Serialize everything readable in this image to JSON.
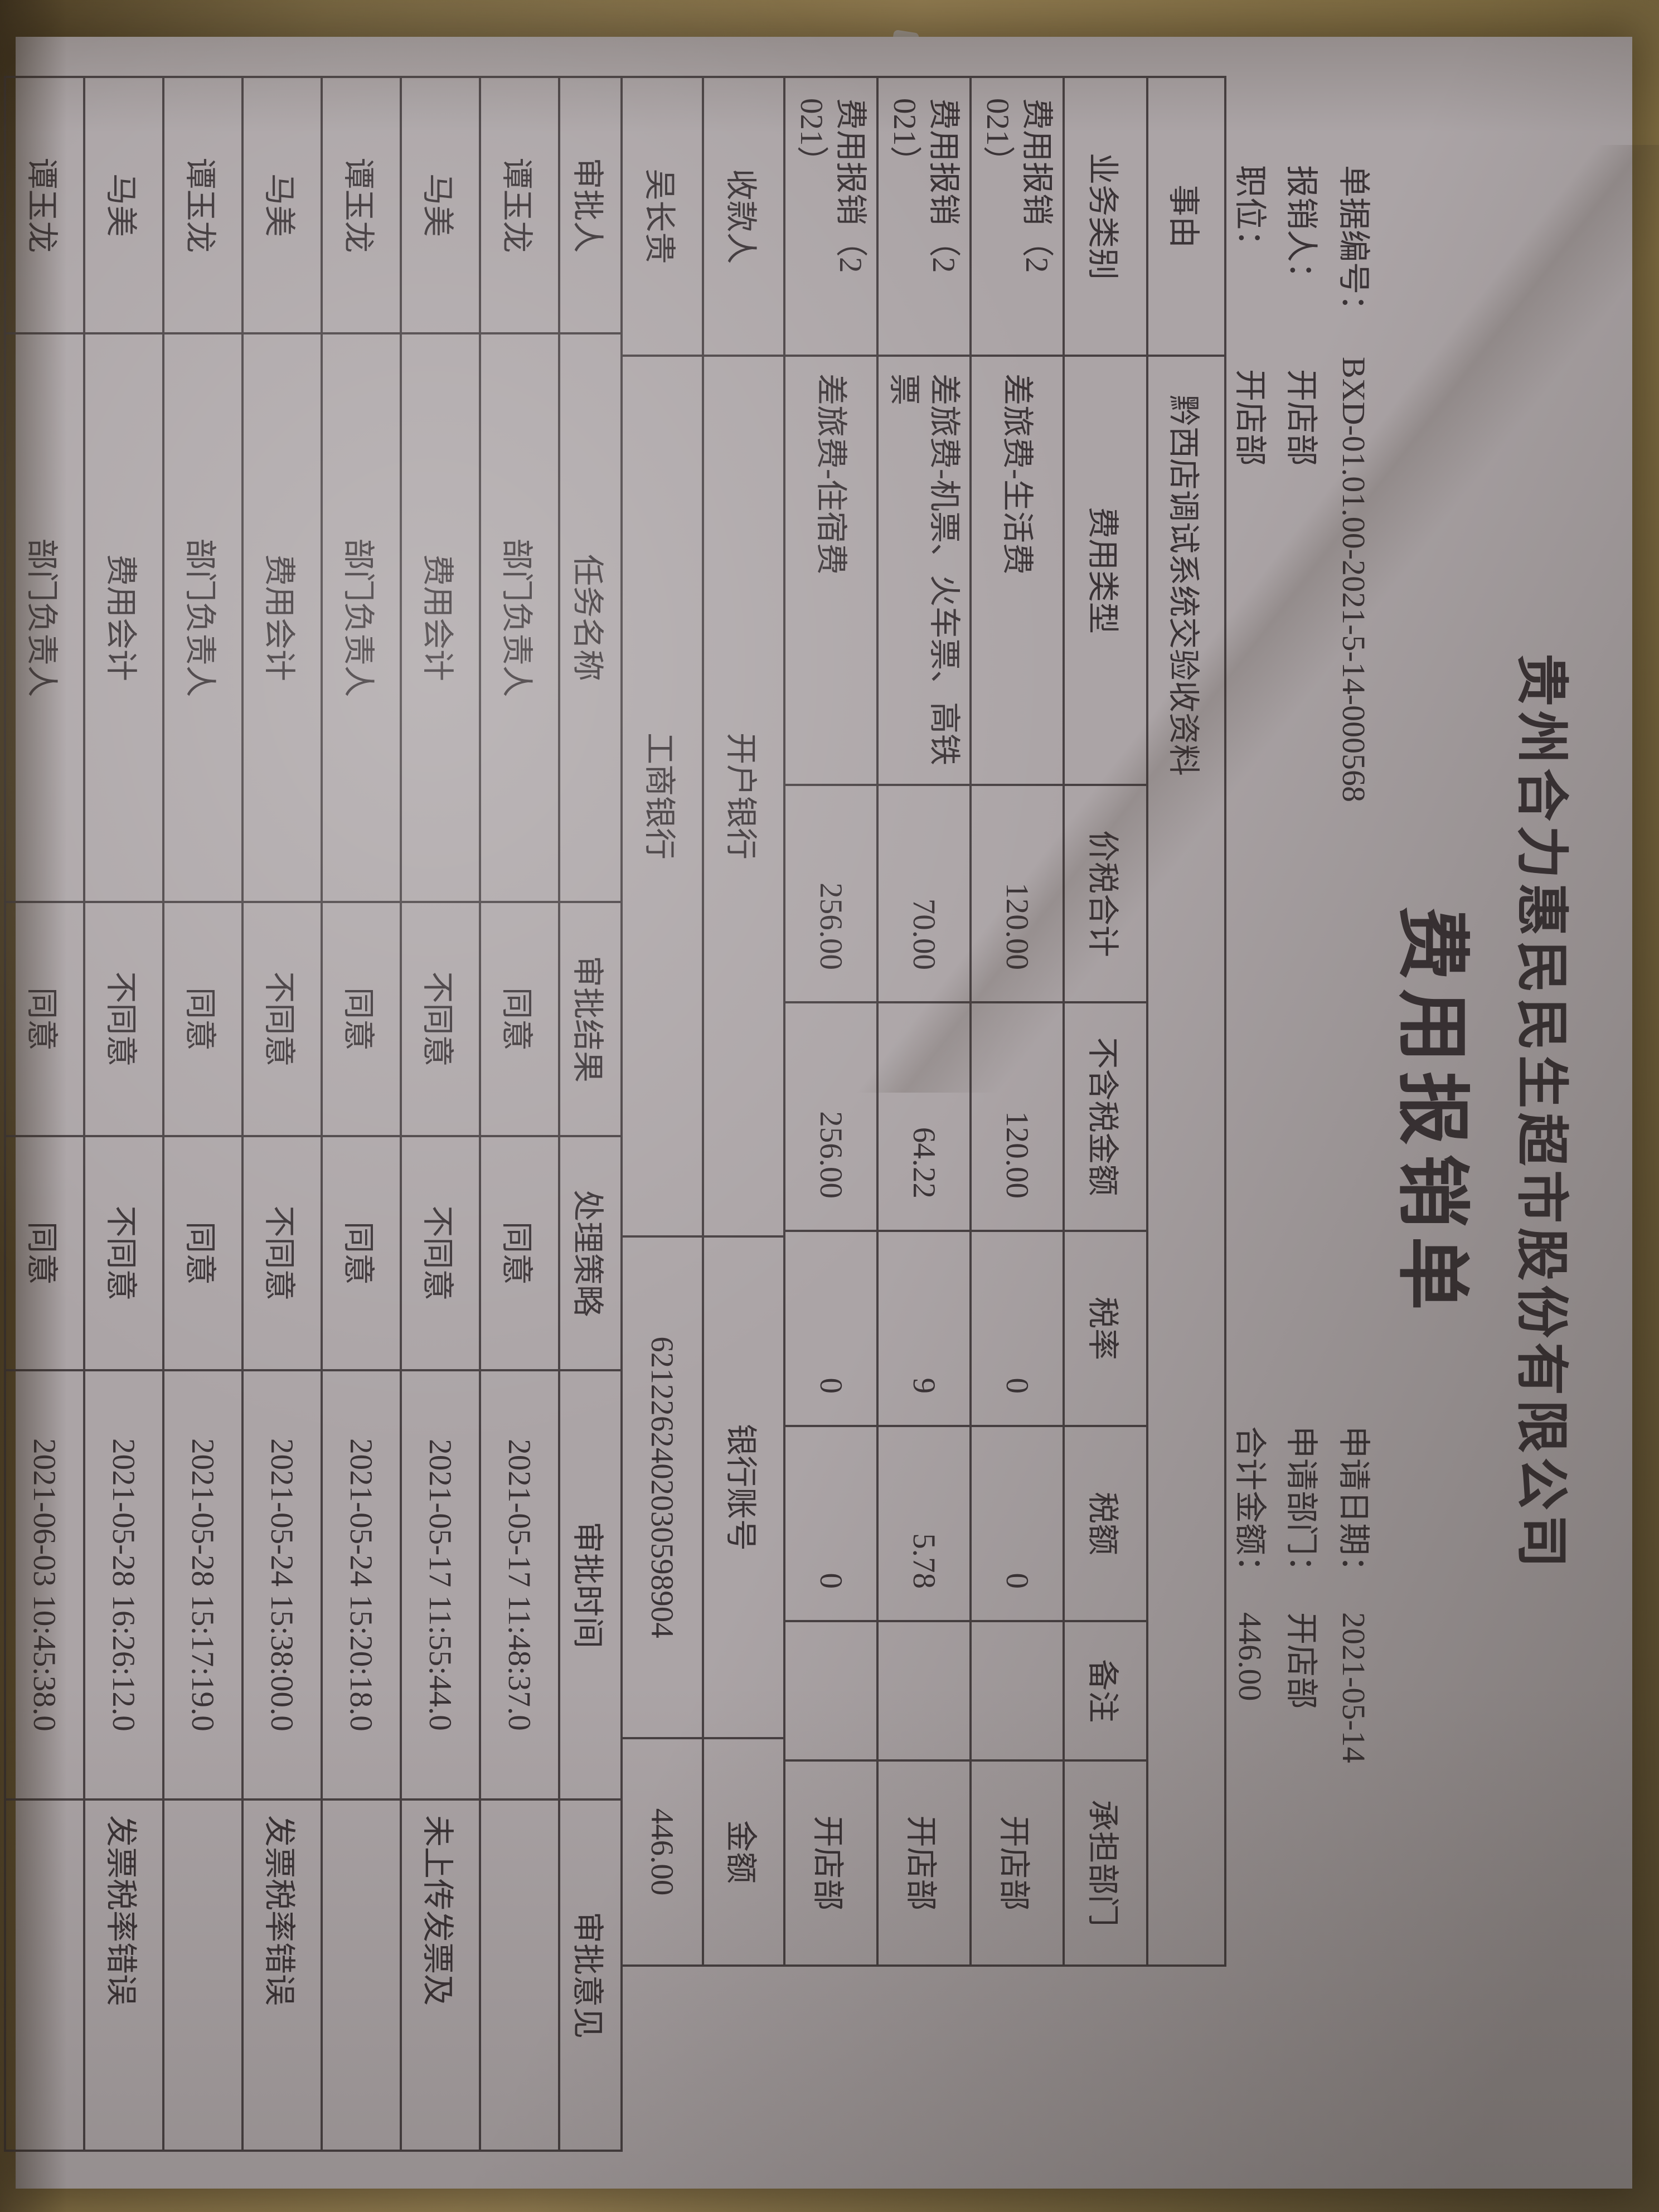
{
  "surface": {
    "desk_color": "#9a8453",
    "paper_color": "#aba4a6",
    "ink_color": "#3a3336"
  },
  "document": {
    "company_title": "贵州合力惠民民生超市股份有限公司",
    "form_title": "费用报销单",
    "header_fields": {
      "left": [
        {
          "label": "单据编号：",
          "value": "BXD-01.01.00-2021-5-14-000568"
        },
        {
          "label": "报销人：",
          "value": "开店部"
        },
        {
          "label": "职位：",
          "value": "开店部"
        }
      ],
      "right": [
        {
          "label": "申请日期：",
          "value": "2021-05-14"
        },
        {
          "label": "申请部门：",
          "value": "开店部"
        },
        {
          "label": "合计金额：",
          "value": "446.00"
        }
      ]
    },
    "expense_table": {
      "subject_label": "事由",
      "subject_value": "黔西店调试系统交验收资料",
      "columns": [
        "业务类别",
        "费用类型",
        "价税合计",
        "不含税金额",
        "税率",
        "税额",
        "备注",
        "承担部门"
      ],
      "rows": [
        [
          "费用报销（2021）",
          "差旅费-生活费",
          "120.00",
          "120.00",
          "0",
          "0",
          "",
          "开店部"
        ],
        [
          "费用报销（2021）",
          "差旅费-机票、火车票、高铁票",
          "70.00",
          "64.22",
          "9",
          "5.78",
          "",
          "开店部"
        ],
        [
          "费用报销（2021）",
          "差旅费-住宿费",
          "256.00",
          "256.00",
          "0",
          "0",
          "",
          "开店部"
        ]
      ]
    },
    "payee_table": {
      "columns": [
        "收款人",
        "开户银行",
        "银行账号",
        "金额"
      ],
      "values": [
        "吴长贵",
        "工商银行",
        "6212262402030598904",
        "446.00"
      ]
    },
    "approval_table": {
      "columns": [
        "审批人",
        "任务名称",
        "审批结果",
        "处理策略",
        "审批时间",
        "审批意见"
      ],
      "rows": [
        [
          "谭玉龙",
          "部门负责人",
          "同意",
          "同意",
          "2021-05-17 11:48:37.0",
          ""
        ],
        [
          "马美",
          "费用会计",
          "不同意",
          "不同意",
          "2021-05-17 11:55:44.0",
          "未上传发票及"
        ],
        [
          "谭玉龙",
          "部门负责人",
          "同意",
          "同意",
          "2021-05-24 15:20:18.0",
          ""
        ],
        [
          "马美",
          "费用会计",
          "不同意",
          "不同意",
          "2021-05-24 15:38:00.0",
          "发票税率错误"
        ],
        [
          "谭玉龙",
          "部门负责人",
          "同意",
          "同意",
          "2021-05-28 15:17:19.0",
          ""
        ],
        [
          "马美",
          "费用会计",
          "不同意",
          "不同意",
          "2021-05-28 16:26:12.0",
          "发票税率错误"
        ],
        [
          "谭玉龙",
          "部门负责人",
          "同意",
          "同意",
          "2021-06-03 10:45:38.0",
          ""
        ]
      ]
    }
  }
}
